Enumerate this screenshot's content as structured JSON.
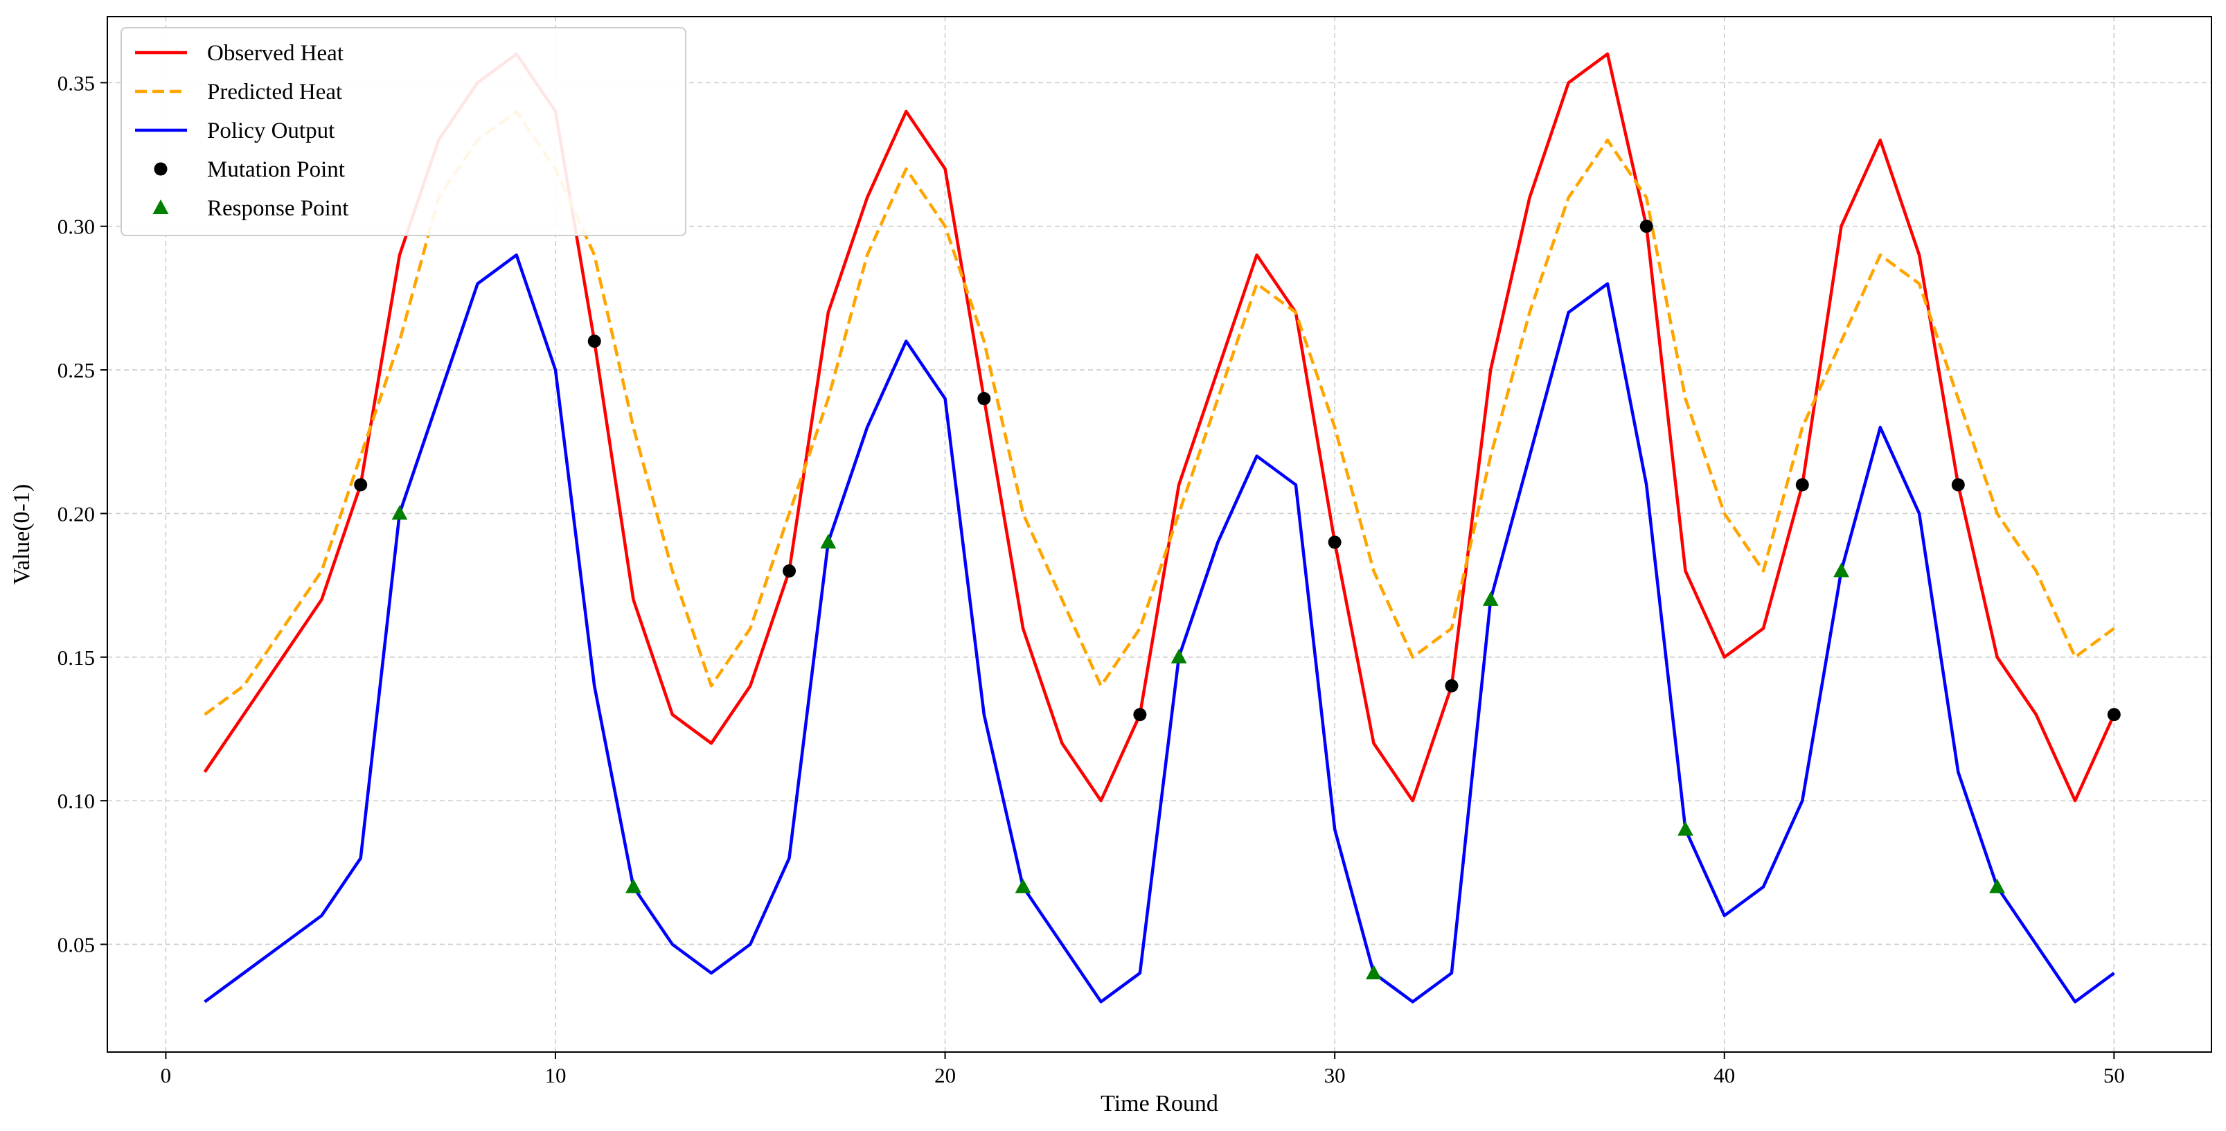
{
  "chart_data": {
    "type": "line",
    "xlabel": "Time Round",
    "ylabel": "Value(0-1)",
    "xlim": [
      -1.5,
      52.5
    ],
    "ylim": [
      0.0125,
      0.373
    ],
    "x_ticks": [
      0,
      10,
      20,
      30,
      40,
      50
    ],
    "x_tick_labels": [
      "0",
      "10",
      "20",
      "30",
      "40",
      "50"
    ],
    "y_ticks": [
      0.05,
      0.1,
      0.15,
      0.2,
      0.25,
      0.3,
      0.35
    ],
    "y_tick_labels": [
      "0.05",
      "0.10",
      "0.15",
      "0.20",
      "0.25",
      "0.30",
      "0.35"
    ],
    "grid": true,
    "legend_position": "top-left",
    "x": [
      1,
      2,
      3,
      4,
      5,
      6,
      7,
      8,
      9,
      10,
      11,
      12,
      13,
      14,
      15,
      16,
      17,
      18,
      19,
      20,
      21,
      22,
      23,
      24,
      25,
      26,
      27,
      28,
      29,
      30,
      31,
      32,
      33,
      34,
      35,
      36,
      37,
      38,
      39,
      40,
      41,
      42,
      43,
      44,
      45,
      46,
      47,
      48,
      49,
      50
    ],
    "series": [
      {
        "name": "Observed Heat",
        "kind": "line",
        "style": "solid",
        "color": "#ff0000",
        "values": [
          0.11,
          0.13,
          0.15,
          0.17,
          0.21,
          0.29,
          0.33,
          0.35,
          0.36,
          0.34,
          0.26,
          0.17,
          0.13,
          0.12,
          0.14,
          0.18,
          0.27,
          0.31,
          0.34,
          0.32,
          0.24,
          0.16,
          0.12,
          0.1,
          0.13,
          0.21,
          0.25,
          0.29,
          0.27,
          0.19,
          0.12,
          0.1,
          0.14,
          0.25,
          0.31,
          0.35,
          0.36,
          0.3,
          0.18,
          0.15,
          0.16,
          0.21,
          0.3,
          0.33,
          0.29,
          0.21,
          0.15,
          0.13,
          0.1,
          0.13
        ]
      },
      {
        "name": "Predicted Heat",
        "kind": "line",
        "style": "dashed",
        "color": "#ffa500",
        "values": [
          0.13,
          0.14,
          0.16,
          0.18,
          0.22,
          0.26,
          0.31,
          0.33,
          0.34,
          0.32,
          0.29,
          0.23,
          0.18,
          0.14,
          0.16,
          0.2,
          0.24,
          0.29,
          0.32,
          0.3,
          0.26,
          0.2,
          0.17,
          0.14,
          0.16,
          0.2,
          0.24,
          0.28,
          0.27,
          0.23,
          0.18,
          0.15,
          0.16,
          0.22,
          0.27,
          0.31,
          0.33,
          0.31,
          0.24,
          0.2,
          0.18,
          0.23,
          0.26,
          0.29,
          0.28,
          0.24,
          0.2,
          0.18,
          0.15,
          0.16
        ]
      },
      {
        "name": "Policy Output",
        "kind": "line",
        "style": "solid",
        "color": "#0000ff",
        "values": [
          0.03,
          0.04,
          0.05,
          0.06,
          0.08,
          0.2,
          0.24,
          0.28,
          0.29,
          0.25,
          0.14,
          0.07,
          0.05,
          0.04,
          0.05,
          0.08,
          0.19,
          0.23,
          0.26,
          0.24,
          0.13,
          0.07,
          0.05,
          0.03,
          0.04,
          0.15,
          0.19,
          0.22,
          0.21,
          0.09,
          0.04,
          0.03,
          0.04,
          0.17,
          0.22,
          0.27,
          0.28,
          0.21,
          0.09,
          0.06,
          0.07,
          0.1,
          0.18,
          0.23,
          0.2,
          0.11,
          0.07,
          0.05,
          0.03,
          0.04
        ]
      },
      {
        "name": "Mutation Point",
        "kind": "scatter",
        "marker": "circle",
        "color": "#000000",
        "points": [
          [
            5,
            0.21
          ],
          [
            11,
            0.26
          ],
          [
            16,
            0.18
          ],
          [
            21,
            0.24
          ],
          [
            25,
            0.13
          ],
          [
            30,
            0.19
          ],
          [
            33,
            0.14
          ],
          [
            38,
            0.3
          ],
          [
            42,
            0.21
          ],
          [
            46,
            0.21
          ],
          [
            50,
            0.13
          ]
        ]
      },
      {
        "name": "Response Point",
        "kind": "scatter",
        "marker": "triangle",
        "color": "#008000",
        "points": [
          [
            6,
            0.2
          ],
          [
            12,
            0.07
          ],
          [
            17,
            0.19
          ],
          [
            22,
            0.07
          ],
          [
            26,
            0.15
          ],
          [
            31,
            0.04
          ],
          [
            34,
            0.17
          ],
          [
            39,
            0.09
          ],
          [
            43,
            0.18
          ],
          [
            47,
            0.07
          ]
        ]
      }
    ]
  }
}
